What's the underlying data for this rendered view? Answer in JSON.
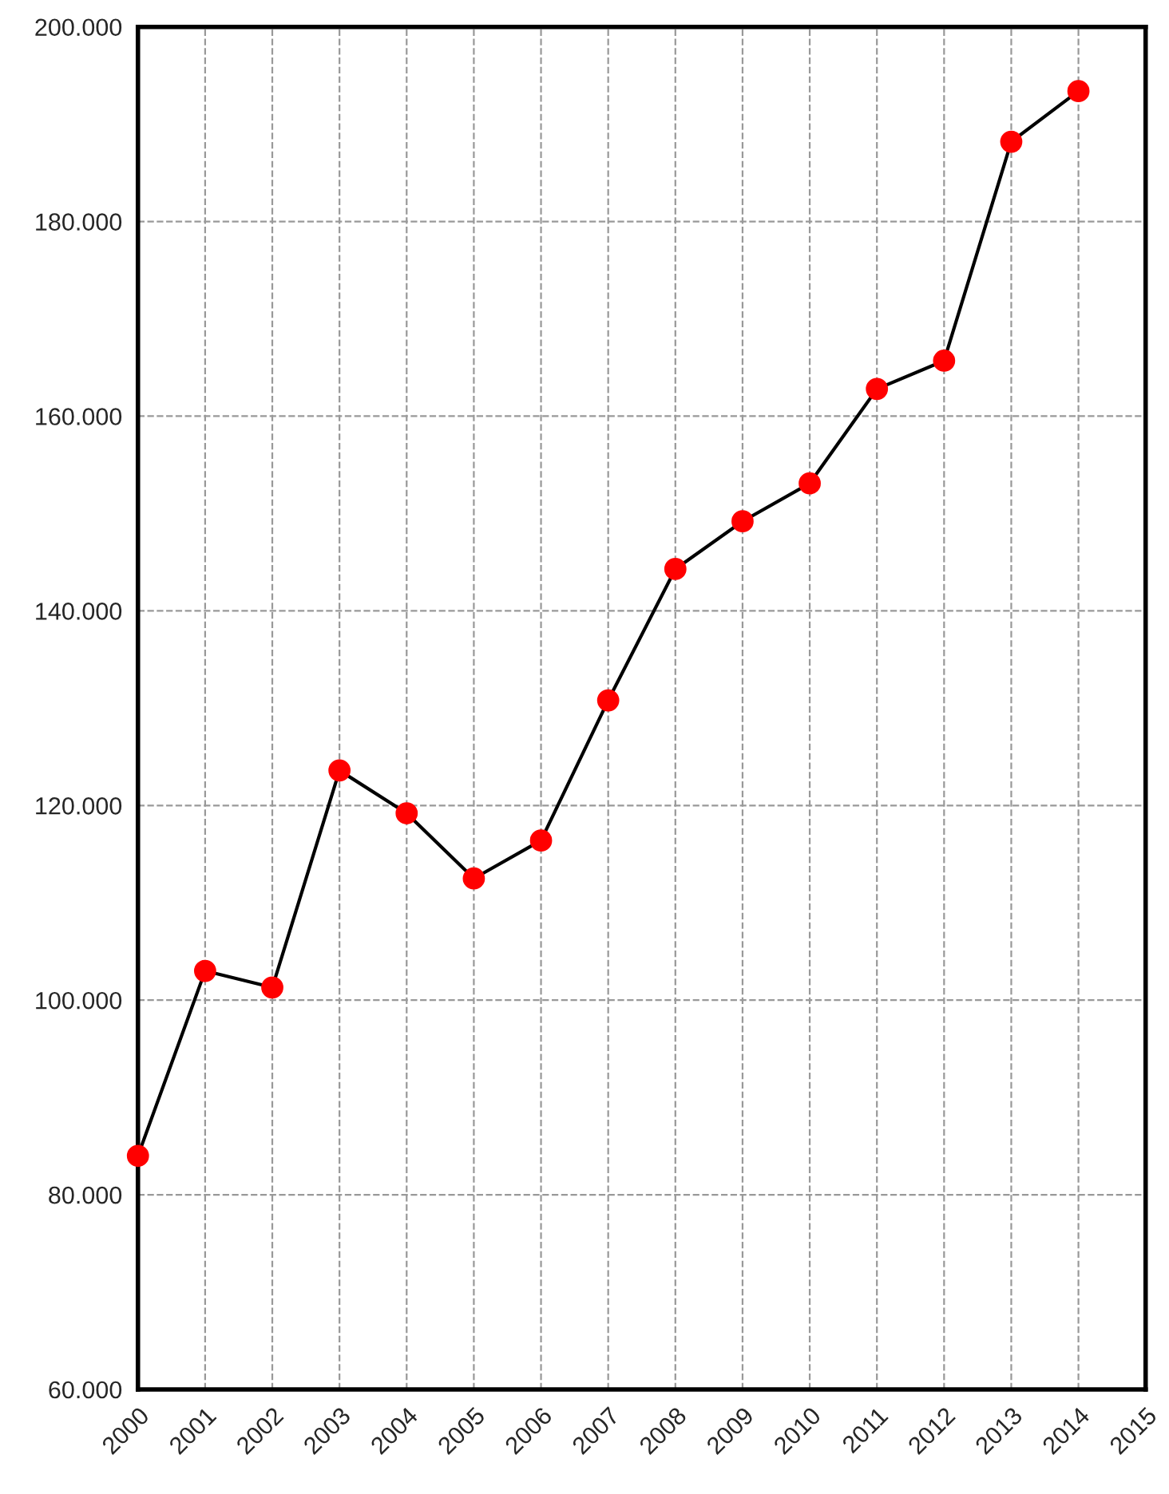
{
  "chart_data": {
    "type": "line",
    "x": [
      2000,
      2001,
      2002,
      2003,
      2004,
      2005,
      2006,
      2007,
      2008,
      2009,
      2010,
      2011,
      2012,
      2013,
      2014
    ],
    "series": [
      {
        "color": "#000000",
        "colors": [
          "#ff0000",
          "#ff0000",
          "#ff0000",
          "#ff0000",
          "#ff0000",
          "#ff0000",
          "#ff0000",
          "#ff0000",
          "#ff0000",
          "#ff0000",
          "#ff0000",
          "#ff0000",
          "#ff0000",
          "#ff0000",
          "#ff0000"
        ],
        "values": [
          84,
          103,
          101.3,
          123.6,
          119.2,
          112.5,
          116.4,
          130.8,
          144.3,
          149.2,
          153.1,
          162.8,
          165.7,
          188.2,
          193.4
        ]
      }
    ],
    "marker": "circle",
    "line_style": "solid",
    "grid": true,
    "xlim": [
      2000,
      2015
    ],
    "xticks": [
      2000,
      2001,
      2002,
      2003,
      2004,
      2005,
      2006,
      2007,
      2008,
      2009,
      2010,
      2011,
      2012,
      2013,
      2014,
      2015
    ],
    "ylim": [
      60,
      200
    ],
    "yticks": [
      {
        "value": 60,
        "label": "60.000"
      },
      {
        "value": 80,
        "label": "80.000"
      },
      {
        "value": 100,
        "label": "100.000"
      },
      {
        "value": 120,
        "label": "120.000"
      },
      {
        "value": 140,
        "label": "140.000"
      },
      {
        "value": 160,
        "label": "160.000"
      },
      {
        "value": 180,
        "label": "180.000"
      },
      {
        "value": 200,
        "label": "200.000"
      }
    ]
  }
}
